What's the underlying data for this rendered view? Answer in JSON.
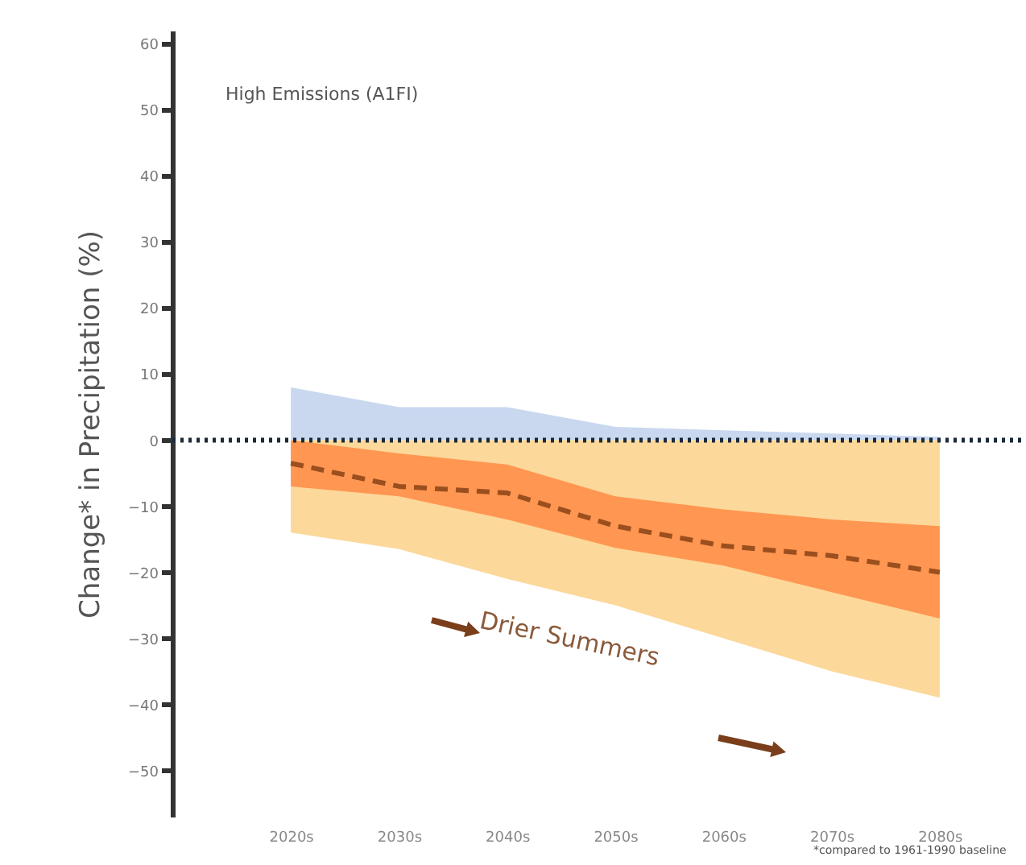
{
  "chart_data": {
    "type": "line",
    "ylabel": "Change* in Precipitation (%)",
    "annotations": [
      "High Emissions (A1FI)",
      "Drier Summers",
      "*compared to 1961-1990 baseline"
    ],
    "categories": [
      "2020s",
      "2030s",
      "2040s",
      "2050s",
      "2060s",
      "2070s",
      "2080s"
    ],
    "series": [
      {
        "type": "area",
        "color": "#c9d7ef",
        "values": [
          8,
          5,
          5,
          2,
          1.5,
          1,
          0.5
        ]
      },
      {
        "type": "area",
        "color": "#fcd89a",
        "values": [
          -14,
          -16.5,
          -21,
          -25,
          -30,
          -35,
          -39
        ]
      },
      {
        "color": "#9c4f1e",
        "line_style": "dashed",
        "values": [
          -3.5,
          -7,
          -8,
          -13,
          -16,
          -17.5,
          -20
        ],
        "lower": [
          -7,
          -8.5,
          -12,
          -16.3,
          -19,
          -23,
          -27
        ],
        "upper": [
          0,
          -2,
          -3.7,
          -8.5,
          -10.5,
          -12,
          -13
        ]
      }
    ],
    "ref_lines": [
      {
        "axis": "y",
        "value": 0,
        "color": "#1a2a3a",
        "line_style": "dotted"
      }
    ],
    "ylim": [
      -57,
      62
    ],
    "yticks": [
      -50,
      -40,
      -30,
      -20,
      -10,
      0,
      10,
      20,
      30,
      40,
      50,
      60
    ],
    "grid": false
  }
}
